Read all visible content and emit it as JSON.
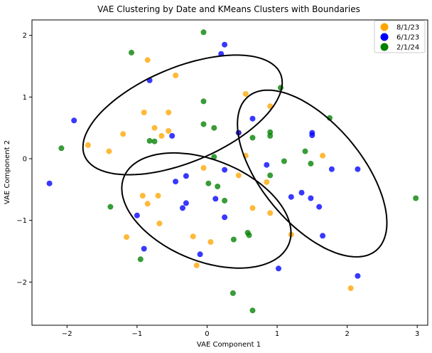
{
  "chart_data": {
    "type": "scatter",
    "title": "VAE Clustering by Date and KMeans Clusters with Boundaries",
    "xlabel": "VAE Component 1",
    "ylabel": "VAE Component 2",
    "xlim": [
      -2.5,
      3.15
    ],
    "ylim": [
      -2.7,
      2.25
    ],
    "x_ticks": [
      -2,
      -1,
      0,
      1,
      2,
      3
    ],
    "y_ticks": [
      -2,
      -1,
      0,
      1,
      2
    ],
    "grid": false,
    "legend_position": "top-right",
    "series": [
      {
        "name": "8/1/23",
        "color": "#ffa500",
        "points": [
          [
            -0.85,
            1.6
          ],
          [
            -0.45,
            1.35
          ],
          [
            -0.9,
            0.75
          ],
          [
            -0.55,
            0.75
          ],
          [
            -0.75,
            0.5
          ],
          [
            -0.55,
            0.45
          ],
          [
            -0.65,
            0.37
          ],
          [
            -1.2,
            0.4
          ],
          [
            -1.7,
            0.22
          ],
          [
            -1.4,
            0.12
          ],
          [
            0.55,
            1.05
          ],
          [
            0.9,
            0.85
          ],
          [
            0.45,
            0.42
          ],
          [
            0.55,
            0.05
          ],
          [
            1.65,
            0.05
          ],
          [
            -0.05,
            -0.15
          ],
          [
            0.45,
            -0.27
          ],
          [
            0.85,
            -0.38
          ],
          [
            -0.92,
            -0.6
          ],
          [
            -0.7,
            -0.6
          ],
          [
            -0.85,
            -0.73
          ],
          [
            -0.68,
            -1.05
          ],
          [
            -1.15,
            -1.27
          ],
          [
            -0.2,
            -1.26
          ],
          [
            0.05,
            -1.35
          ],
          [
            -0.15,
            -1.73
          ],
          [
            0.65,
            -0.8
          ],
          [
            0.9,
            -0.88
          ],
          [
            1.2,
            -1.23
          ],
          [
            2.05,
            -2.1
          ]
        ]
      },
      {
        "name": "6/1/23",
        "color": "#0000ff",
        "points": [
          [
            0.25,
            1.85
          ],
          [
            0.2,
            1.7
          ],
          [
            -0.82,
            1.27
          ],
          [
            -1.9,
            0.62
          ],
          [
            -0.5,
            0.37
          ],
          [
            -2.25,
            -0.4
          ],
          [
            -0.3,
            -0.28
          ],
          [
            -0.45,
            -0.37
          ],
          [
            -0.3,
            -0.72
          ],
          [
            -0.35,
            -0.8
          ],
          [
            -1.0,
            -0.92
          ],
          [
            -0.9,
            -1.46
          ],
          [
            -0.1,
            -1.55
          ],
          [
            0.12,
            -0.65
          ],
          [
            0.25,
            -0.95
          ],
          [
            0.25,
            -0.18
          ],
          [
            0.65,
            0.65
          ],
          [
            0.45,
            0.42
          ],
          [
            0.85,
            -0.1
          ],
          [
            1.5,
            0.42
          ],
          [
            1.5,
            0.38
          ],
          [
            1.35,
            -0.55
          ],
          [
            1.2,
            -0.62
          ],
          [
            1.48,
            -0.64
          ],
          [
            1.6,
            -0.78
          ],
          [
            1.65,
            -1.25
          ],
          [
            1.78,
            -0.17
          ],
          [
            2.15,
            -0.17
          ],
          [
            2.15,
            -1.9
          ],
          [
            1.02,
            -1.78
          ]
        ]
      },
      {
        "name": "2/1/24",
        "color": "#008000",
        "points": [
          [
            -1.08,
            1.72
          ],
          [
            -0.05,
            2.05
          ],
          [
            -0.05,
            0.93
          ],
          [
            -0.05,
            0.56
          ],
          [
            0.1,
            0.5
          ],
          [
            -0.82,
            0.29
          ],
          [
            -0.75,
            0.28
          ],
          [
            -2.08,
            0.17
          ],
          [
            1.05,
            1.15
          ],
          [
            1.75,
            0.66
          ],
          [
            0.9,
            0.43
          ],
          [
            0.9,
            0.37
          ],
          [
            0.65,
            0.34
          ],
          [
            1.4,
            0.12
          ],
          [
            1.1,
            -0.04
          ],
          [
            1.48,
            -0.08
          ],
          [
            0.1,
            0.03
          ],
          [
            0.9,
            -0.27
          ],
          [
            0.02,
            -0.4
          ],
          [
            0.15,
            -0.45
          ],
          [
            0.25,
            -0.68
          ],
          [
            -1.38,
            -0.78
          ],
          [
            0.58,
            -1.2
          ],
          [
            0.6,
            -1.24
          ],
          [
            0.38,
            -1.31
          ],
          [
            -0.95,
            -1.63
          ],
          [
            0.37,
            -2.18
          ],
          [
            0.65,
            -2.46
          ],
          [
            2.98,
            -0.64
          ]
        ]
      }
    ],
    "cluster_boundaries": [
      {
        "cx": -0.35,
        "cy": 0.71,
        "rx": 1.55,
        "ry": 0.75,
        "angle_deg": 27
      },
      {
        "cx": 1.5,
        "cy": -0.24,
        "rx": 1.55,
        "ry": 0.75,
        "angle_deg": -56
      },
      {
        "cx": -0.01,
        "cy": -0.84,
        "rx": 1.3,
        "ry": 0.8,
        "angle_deg": -28
      }
    ]
  }
}
